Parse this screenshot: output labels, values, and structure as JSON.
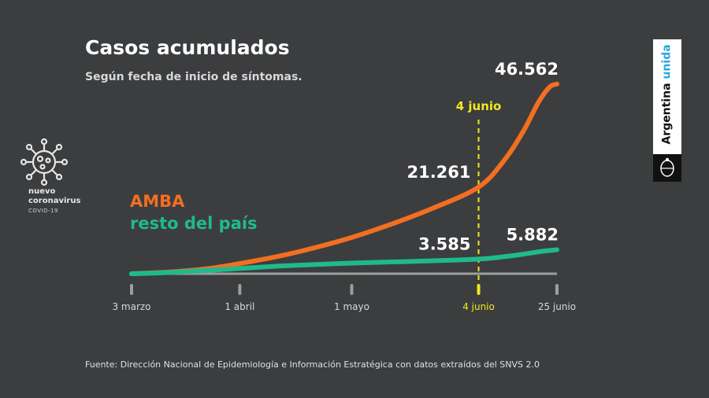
{
  "header": {
    "title": "Casos acumulados",
    "subtitle": "Según fecha de inicio de síntomas."
  },
  "badge": {
    "line1": "nuevo",
    "line2": "coronavirus",
    "line3": "COVID-19"
  },
  "brand": {
    "word1": "Argentina",
    "word2": "unida"
  },
  "source": "Fuente: Dirección Nacional de Epidemiología e Información Estratégica con datos extraídos del SNVS 2.0",
  "colors": {
    "background": "#3c3d3f",
    "amba": "#f26f21",
    "resto": "#1fba8b",
    "marker": "#f0e91f",
    "axis": "#9e9e9e"
  },
  "chart_data": {
    "type": "line",
    "title": "Casos acumulados",
    "subtitle": "Según fecha de inicio de síntomas.",
    "x_ticks": [
      "3 marzo",
      "1 abril",
      "1 mayo",
      "4 junio",
      "25 junio"
    ],
    "x_tick_days": [
      0,
      29,
      59,
      93,
      114
    ],
    "x_range": [
      0,
      114
    ],
    "y_range": [
      0,
      50000
    ],
    "marker": {
      "label": "4 junio",
      "day": 93
    },
    "series": [
      {
        "name": "AMBA",
        "days": [
          0,
          10,
          20,
          29,
          40,
          50,
          59,
          70,
          80,
          93,
          100,
          105,
          109,
          112,
          114
        ],
        "values": [
          0,
          400,
          1200,
          2500,
          4400,
          6600,
          8900,
          12300,
          15800,
          21261,
          28000,
          35000,
          42000,
          45800,
          46562
        ]
      },
      {
        "name": "resto del país",
        "days": [
          0,
          10,
          20,
          29,
          40,
          50,
          59,
          70,
          80,
          93,
          100,
          105,
          110,
          114
        ],
        "values": [
          0,
          300,
          800,
          1300,
          1900,
          2300,
          2600,
          2900,
          3150,
          3585,
          4200,
          4800,
          5500,
          5882
        ]
      }
    ],
    "annotations": [
      {
        "series": "AMBA",
        "day": 93,
        "text": "21.261"
      },
      {
        "series": "AMBA",
        "day": 114,
        "text": "46.562"
      },
      {
        "series": "resto del país",
        "day": 93,
        "text": "3.585"
      },
      {
        "series": "resto del país",
        "day": 114,
        "text": "5.882"
      }
    ],
    "legend": [
      "AMBA",
      "resto del país"
    ],
    "legend_position": "left"
  }
}
